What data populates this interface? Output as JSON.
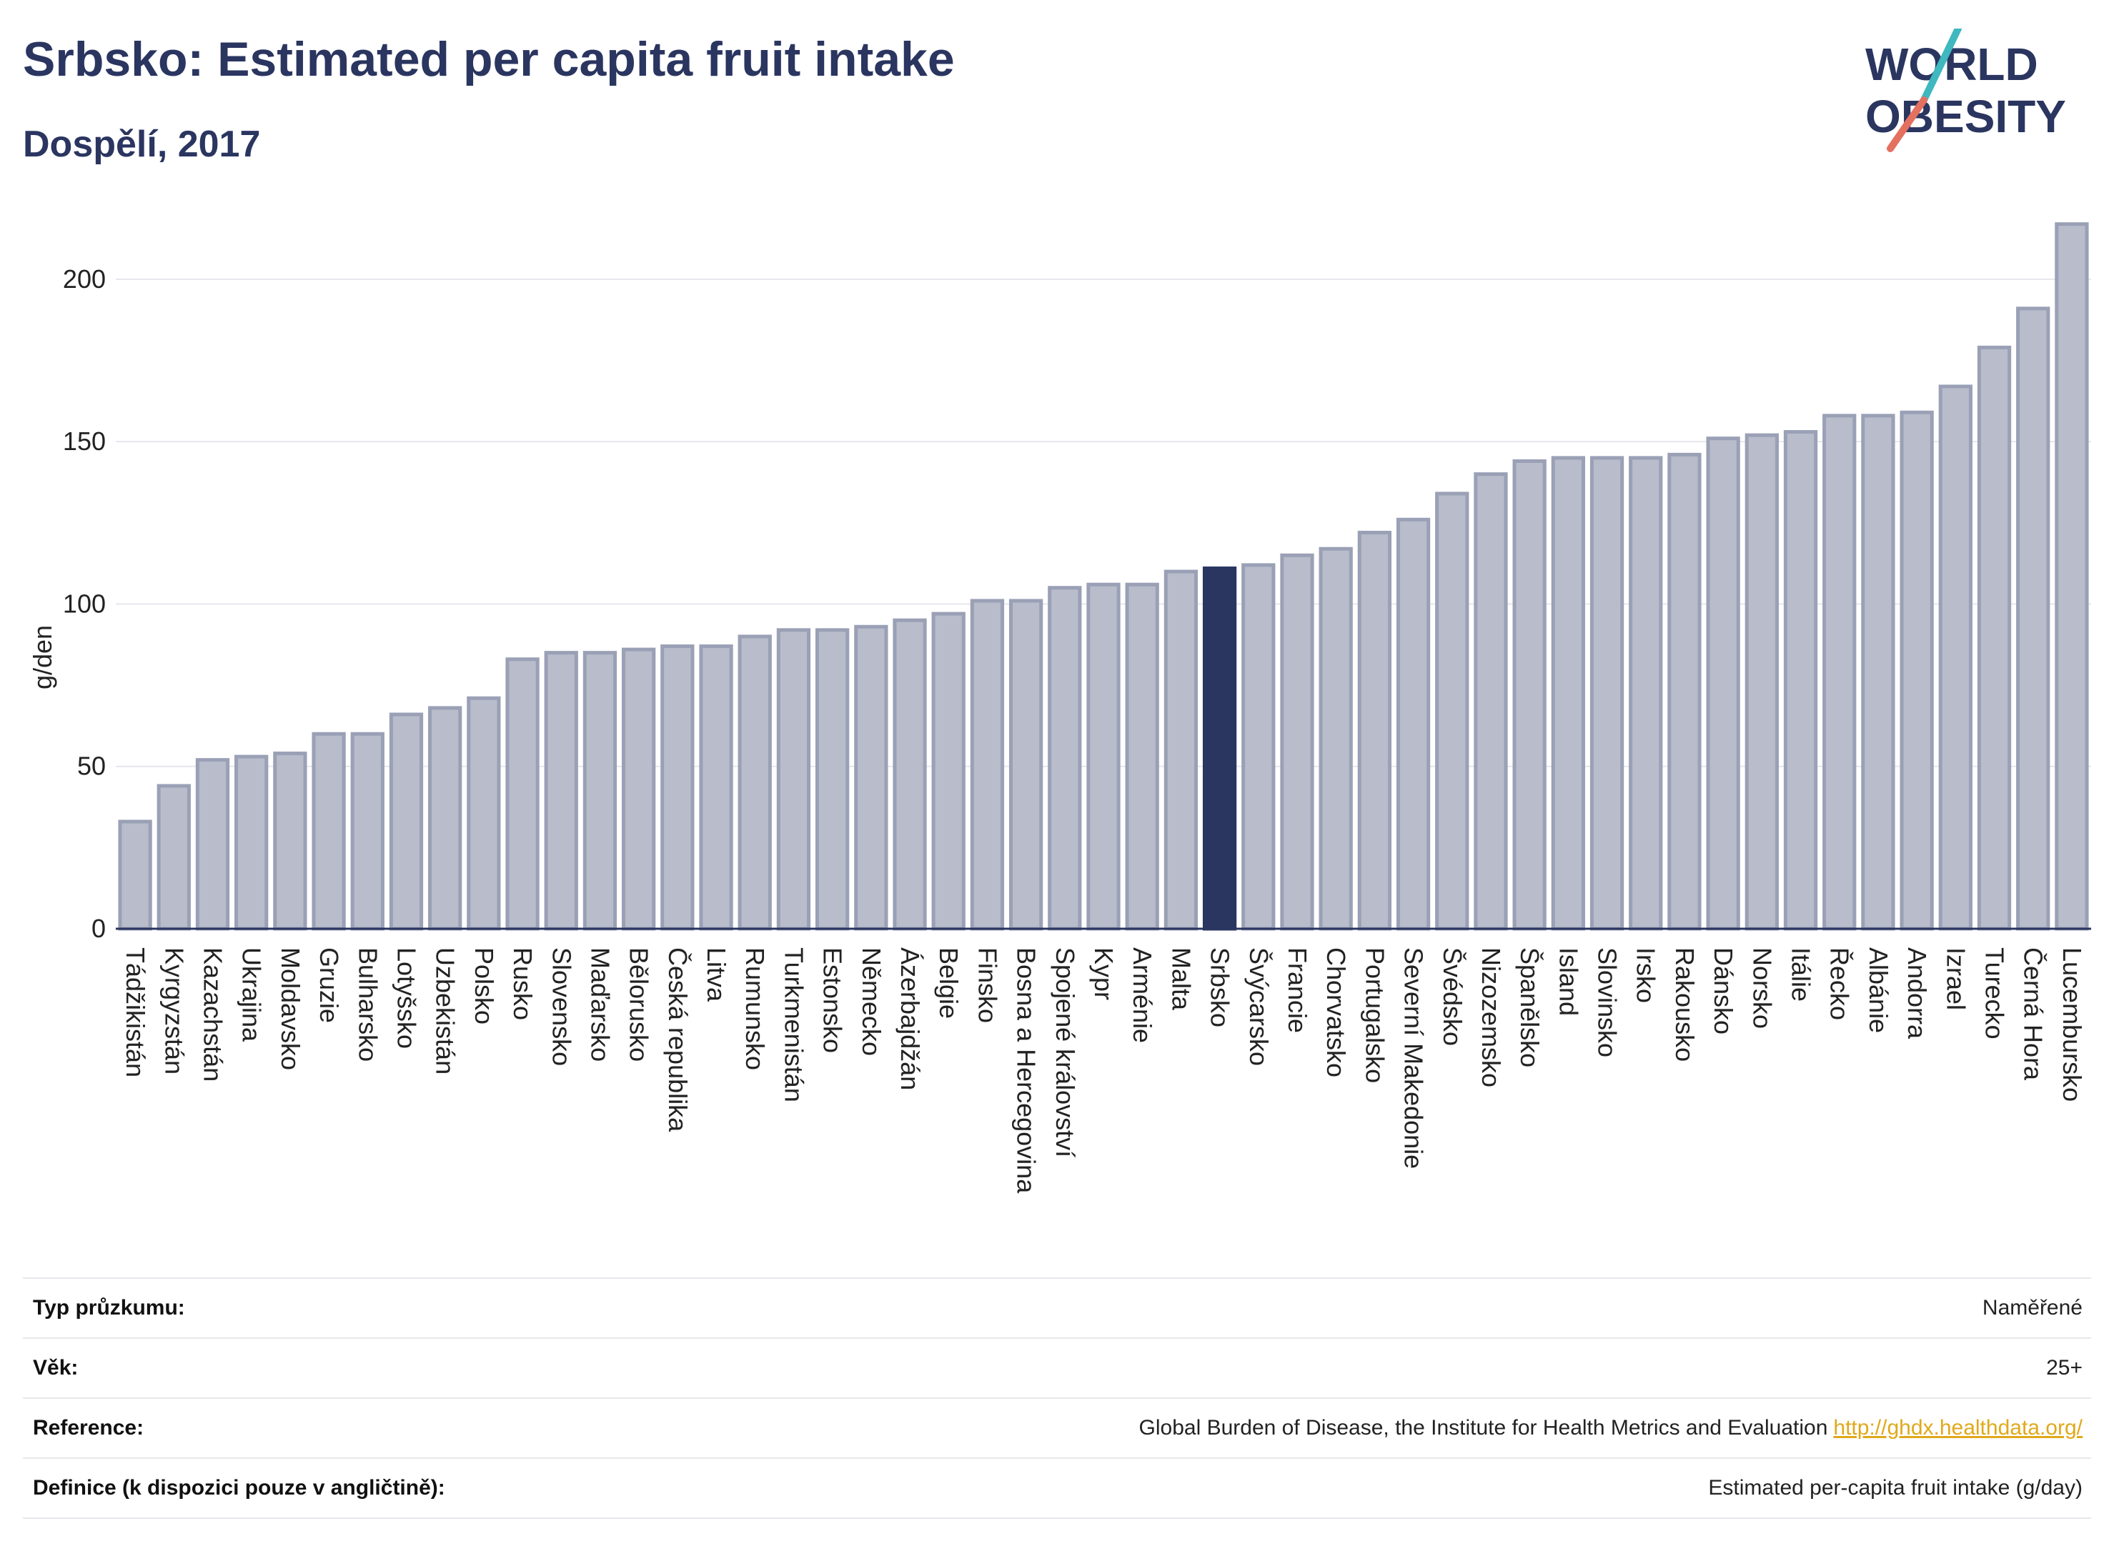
{
  "header": {
    "title": "Srbsko: Estimated per capita fruit intake",
    "subtitle": "Dospělí, 2017"
  },
  "logo": {
    "line1": "WORLD",
    "line2": "OBESITY"
  },
  "colors": {
    "bar": "#b8bccb",
    "bar_stroke": "#9aa0b5",
    "highlight": "#2a3560",
    "title": "#2a3560",
    "link": "#e0a91b",
    "logo_teal": "#3fb8bf",
    "logo_coral": "#e4705f"
  },
  "chart_data": {
    "type": "bar",
    "ylabel": "g/den",
    "ylim": [
      0,
      220
    ],
    "yticks": [
      0,
      50,
      100,
      150,
      200
    ],
    "grid": true,
    "highlight": "Srbsko",
    "categories": [
      "Tádžikistán",
      "Kyrgyzstán",
      "Kazachstán",
      "Ukrajina",
      "Moldavsko",
      "Gruzie",
      "Bulharsko",
      "Lotyšsko",
      "Uzbekistán",
      "Polsko",
      "Rusko",
      "Slovensko",
      "Maďarsko",
      "Bělorusko",
      "Česká republika",
      "Litva",
      "Rumunsko",
      "Turkmenistán",
      "Estonsko",
      "Německo",
      "Ázerbajdžán",
      "Belgie",
      "Finsko",
      "Bosna a Hercegovina",
      "Spojené království",
      "Kypr",
      "Arménie",
      "Malta",
      "Srbsko",
      "Švýcarsko",
      "Francie",
      "Chorvatsko",
      "Portugalsko",
      "Severní Makedonie",
      "Švédsko",
      "Nizozemsko",
      "Španělsko",
      "Island",
      "Slovinsko",
      "Irsko",
      "Rakousko",
      "Dánsko",
      "Norsko",
      "Itálie",
      "Řecko",
      "Albánie",
      "Andorra",
      "Izrael",
      "Turecko",
      "Černá Hora",
      "Lucembursko"
    ],
    "values": [
      33,
      44,
      52,
      53,
      54,
      60,
      60,
      66,
      68,
      71,
      83,
      85,
      85,
      86,
      87,
      87,
      90,
      92,
      92,
      93,
      95,
      97,
      101,
      101,
      105,
      106,
      106,
      110,
      111,
      112,
      115,
      117,
      122,
      126,
      134,
      140,
      144,
      145,
      145,
      145,
      146,
      151,
      152,
      153,
      158,
      158,
      159,
      167,
      179,
      191,
      217
    ]
  },
  "info": {
    "rows": [
      {
        "key": "Typ průzkumu:",
        "value": "Naměřené"
      },
      {
        "key": "Věk:",
        "value": "25+"
      },
      {
        "key": "Reference:",
        "value": "Global Burden of Disease, the Institute for Health Metrics and Evaluation",
        "link": "http://ghdx.healthdata.org/"
      },
      {
        "key": "Definice (k dispozici pouze v angličtině):",
        "value": "Estimated per-capita fruit intake (g/day)"
      }
    ]
  }
}
